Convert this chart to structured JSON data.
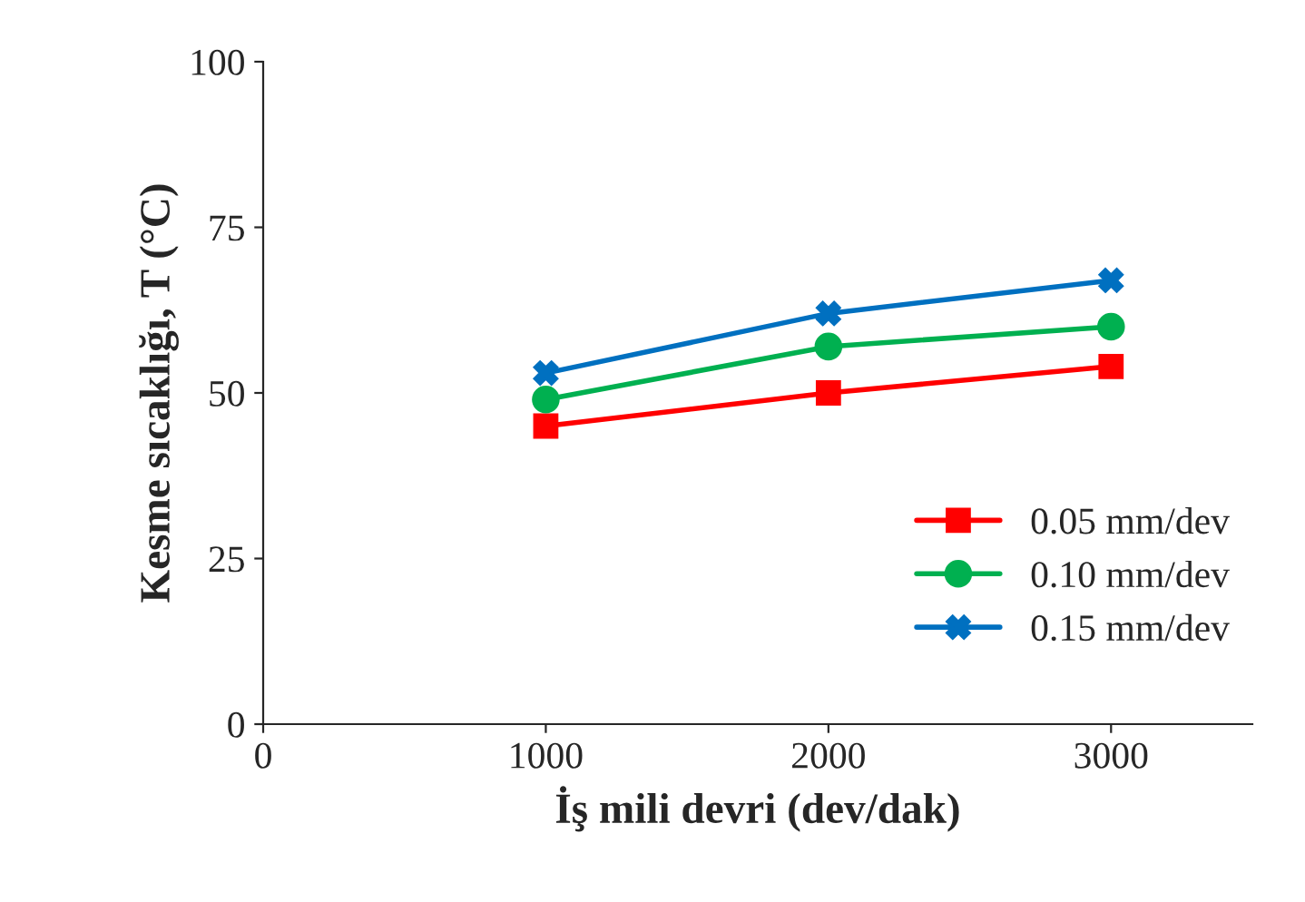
{
  "chart_data": {
    "type": "line",
    "xlabel": "İş mili devri (dev/dak)",
    "ylabel": "Kesme sıcaklığı, T (°C)",
    "x": [
      1000,
      2000,
      3000
    ],
    "series": [
      {
        "name": "0.05 mm/dev",
        "color": "#ff0000",
        "marker": "square",
        "values": [
          45,
          50,
          54
        ]
      },
      {
        "name": "0.10 mm/dev",
        "color": "#00b050",
        "marker": "circle",
        "values": [
          49,
          57,
          60
        ]
      },
      {
        "name": "0.15 mm/dev",
        "color": "#0070c0",
        "marker": "cross",
        "values": [
          53,
          62,
          67
        ]
      }
    ],
    "xlim": [
      0,
      3500
    ],
    "xticks": [
      0,
      1000,
      2000,
      3000
    ],
    "ylim": [
      0,
      100
    ],
    "yticks": [
      0,
      25,
      50,
      75,
      100
    ],
    "grid": false,
    "legend": "bottom right",
    "line_style": "solid"
  }
}
